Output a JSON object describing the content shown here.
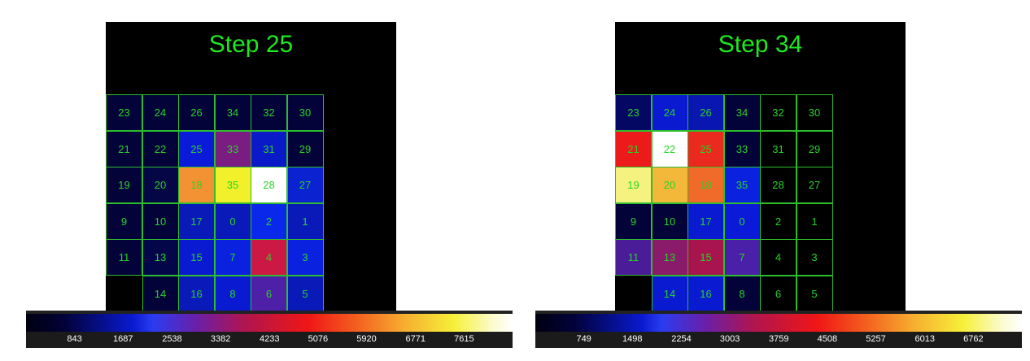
{
  "chart_data": [
    {
      "type": "heatmap",
      "title": "Step 25",
      "cells": [
        [
          {
            "label": "23",
            "color": "#03033a"
          },
          {
            "label": "24",
            "color": "#03033a"
          },
          {
            "label": "26",
            "color": "#03033a"
          },
          {
            "label": "34",
            "color": "#03033a"
          },
          {
            "label": "32",
            "color": "#03033a"
          },
          {
            "label": "30",
            "color": "#03033a"
          }
        ],
        [
          {
            "label": "21",
            "color": "#03033a"
          },
          {
            "label": "22",
            "color": "#03033a"
          },
          {
            "label": "25",
            "color": "#0a1ad8"
          },
          {
            "label": "33",
            "color": "#7a1c82"
          },
          {
            "label": "31",
            "color": "#0a1ac8"
          },
          {
            "label": "29",
            "color": "#03033a"
          }
        ],
        [
          {
            "label": "19",
            "color": "#03033a"
          },
          {
            "label": "20",
            "color": "#040645"
          },
          {
            "label": "18",
            "color": "#f39232"
          },
          {
            "label": "35",
            "color": "#f1f02a"
          },
          {
            "label": "28",
            "color": "#ffffff"
          },
          {
            "label": "27",
            "color": "#0a22d0"
          }
        ],
        [
          {
            "label": "9",
            "color": "#03033a"
          },
          {
            "label": "10",
            "color": "#03033a"
          },
          {
            "label": "17",
            "color": "#0a1ab8"
          },
          {
            "label": "0",
            "color": "#0a1ab8"
          },
          {
            "label": "2",
            "color": "#0a28ea"
          },
          {
            "label": "1",
            "color": "#0a1ab8"
          }
        ],
        [
          {
            "label": "11",
            "color": "#03033a"
          },
          {
            "label": "13",
            "color": "#04064a"
          },
          {
            "label": "15",
            "color": "#0a1ad0"
          },
          {
            "label": "7",
            "color": "#0a22e0"
          },
          {
            "label": "4",
            "color": "#cb1845"
          },
          {
            "label": "3",
            "color": "#0a22e0"
          }
        ],
        [
          {
            "label": "",
            "color": "#000000"
          },
          {
            "label": "14",
            "color": "#03033a"
          },
          {
            "label": "16",
            "color": "#0a1ab8"
          },
          {
            "label": "8",
            "color": "#0a1ad0"
          },
          {
            "label": "6",
            "color": "#4e20a8"
          },
          {
            "label": "5",
            "color": "#0a1ab8"
          }
        ]
      ],
      "colorbar": {
        "ticks": [
          "843",
          "1687",
          "2538",
          "3382",
          "4233",
          "5076",
          "5920",
          "6771",
          "7615"
        ],
        "min": 0,
        "max": 8458
      }
    },
    {
      "type": "heatmap",
      "title": "Step 34",
      "cells": [
        [
          {
            "label": "23",
            "color": "#050863"
          },
          {
            "label": "24",
            "color": "#0a1ad0"
          },
          {
            "label": "26",
            "color": "#0a16b0"
          },
          {
            "label": "34",
            "color": "#03033a"
          },
          {
            "label": "32",
            "color": "#000000"
          },
          {
            "label": "30",
            "color": "#000000"
          }
        ],
        [
          {
            "label": "21",
            "color": "#ec1a1a"
          },
          {
            "label": "22",
            "color": "#ffffff"
          },
          {
            "label": "25",
            "color": "#ea2a1e"
          },
          {
            "label": "33",
            "color": "#03033a"
          },
          {
            "label": "31",
            "color": "#000000"
          },
          {
            "label": "29",
            "color": "#000000"
          }
        ],
        [
          {
            "label": "19",
            "color": "#f5f280"
          },
          {
            "label": "20",
            "color": "#f3b83a"
          },
          {
            "label": "18",
            "color": "#f06a2a"
          },
          {
            "label": "35",
            "color": "#0a22e0"
          },
          {
            "label": "28",
            "color": "#000000"
          },
          {
            "label": "27",
            "color": "#000000"
          }
        ],
        [
          {
            "label": "9",
            "color": "#03033a"
          },
          {
            "label": "10",
            "color": "#03033a"
          },
          {
            "label": "17",
            "color": "#0a1ad0"
          },
          {
            "label": "0",
            "color": "#0a1ad8"
          },
          {
            "label": "2",
            "color": "#000000"
          },
          {
            "label": "1",
            "color": "#000000"
          }
        ],
        [
          {
            "label": "11",
            "color": "#4a1c98"
          },
          {
            "label": "13",
            "color": "#8a1a6a"
          },
          {
            "label": "15",
            "color": "#a8154e"
          },
          {
            "label": "7",
            "color": "#4a20a8"
          },
          {
            "label": "4",
            "color": "#000000"
          },
          {
            "label": "3",
            "color": "#000000"
          }
        ],
        [
          {
            "label": "",
            "color": "#000000"
          },
          {
            "label": "14",
            "color": "#0a1ad0"
          },
          {
            "label": "16",
            "color": "#0a1ad0"
          },
          {
            "label": "8",
            "color": "#03033a"
          },
          {
            "label": "6",
            "color": "#000000"
          },
          {
            "label": "5",
            "color": "#000000"
          }
        ]
      ],
      "colorbar": {
        "ticks": [
          "749",
          "1498",
          "2254",
          "3003",
          "3759",
          "4508",
          "5257",
          "6013",
          "6762"
        ],
        "min": 0,
        "max": 7511
      }
    }
  ]
}
